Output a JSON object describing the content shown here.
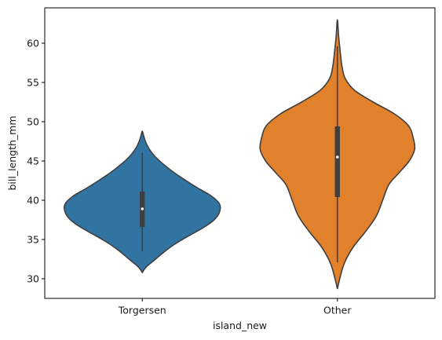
{
  "chart_data": {
    "type": "violin",
    "title": "",
    "xlabel": "island_new",
    "ylabel": "bill_length_mm",
    "ylim": [
      27.5,
      64.5
    ],
    "yticks": [
      30,
      35,
      40,
      45,
      50,
      55,
      60
    ],
    "grid": false,
    "legend": "none",
    "categories": [
      "Torgersen",
      "Other"
    ],
    "colors": [
      "#3274a1",
      "#e1812c"
    ],
    "violins": [
      {
        "category": "Torgersen",
        "min": 33.5,
        "q1": 36.6,
        "median": 38.9,
        "q3": 41.1,
        "max": 46.0,
        "kde_low": 30.8,
        "kde_high": 48.8,
        "density_profile": [
          [
            30.8,
            0.0
          ],
          [
            31.5,
            0.05
          ],
          [
            32.5,
            0.17
          ],
          [
            33.5,
            0.29
          ],
          [
            34.5,
            0.43
          ],
          [
            35.5,
            0.6
          ],
          [
            36.5,
            0.78
          ],
          [
            37.5,
            0.92
          ],
          [
            38.5,
            0.99
          ],
          [
            39.5,
            0.99
          ],
          [
            40.5,
            0.89
          ],
          [
            41.5,
            0.72
          ],
          [
            42.5,
            0.56
          ],
          [
            43.5,
            0.41
          ],
          [
            44.5,
            0.28
          ],
          [
            45.5,
            0.17
          ],
          [
            46.5,
            0.09
          ],
          [
            47.5,
            0.04
          ],
          [
            48.3,
            0.015
          ],
          [
            48.8,
            0.0
          ]
        ]
      },
      {
        "category": "Other",
        "min": 32.1,
        "q1": 40.4,
        "median": 45.5,
        "q3": 49.4,
        "max": 59.6,
        "kde_low": 28.7,
        "kde_high": 63.0,
        "density_profile": [
          [
            28.7,
            0.0
          ],
          [
            30.0,
            0.03
          ],
          [
            32.0,
            0.09
          ],
          [
            34.0,
            0.2
          ],
          [
            36.0,
            0.36
          ],
          [
            38.0,
            0.5
          ],
          [
            40.0,
            0.58
          ],
          [
            42.0,
            0.66
          ],
          [
            43.5,
            0.79
          ],
          [
            45.0,
            0.92
          ],
          [
            46.5,
            0.99
          ],
          [
            48.0,
            0.97
          ],
          [
            49.5,
            0.91
          ],
          [
            51.0,
            0.73
          ],
          [
            52.5,
            0.46
          ],
          [
            54.0,
            0.22
          ],
          [
            55.5,
            0.1
          ],
          [
            57.0,
            0.06
          ],
          [
            59.0,
            0.035
          ],
          [
            61.0,
            0.015
          ],
          [
            63.0,
            0.0
          ]
        ]
      }
    ]
  }
}
